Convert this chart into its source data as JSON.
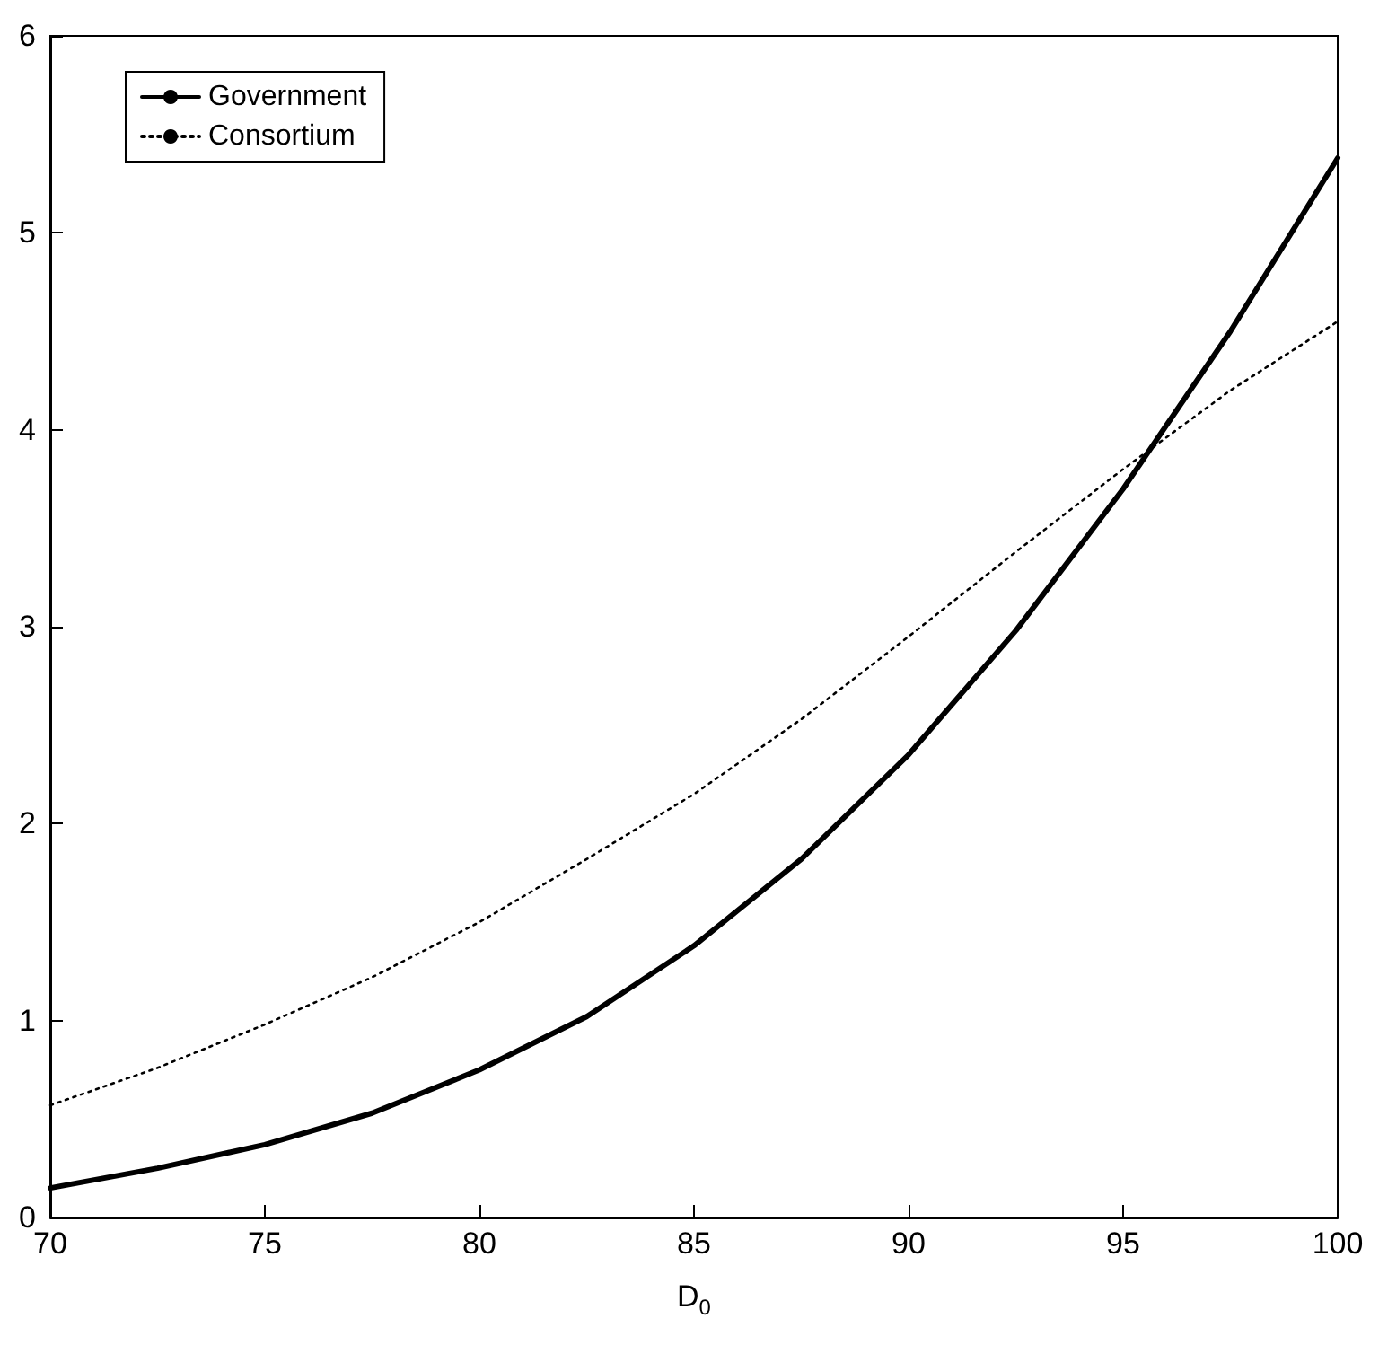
{
  "chart_data": {
    "type": "line",
    "xlabel": "D$_{0}$",
    "x": [
      70,
      72.5,
      75,
      77.5,
      80,
      82.5,
      85,
      87.5,
      90,
      92.5,
      95,
      97.5,
      100
    ],
    "series": [
      {
        "name": "Government",
        "color": "#000000",
        "line_style": "solid",
        "values": [
          0.15,
          0.25,
          0.37,
          0.53,
          0.75,
          1.02,
          1.38,
          1.82,
          2.35,
          2.98,
          3.7,
          4.5,
          5.38
        ]
      },
      {
        "name": "Consortium",
        "color": "#000000",
        "line_style": "dotted",
        "values": [
          0.57,
          0.76,
          0.98,
          1.22,
          1.5,
          1.82,
          2.15,
          2.53,
          2.95,
          3.38,
          3.8,
          4.2,
          4.55
        ]
      }
    ],
    "xlim": [
      70,
      100
    ],
    "xticks": [
      70,
      75,
      80,
      85,
      90,
      95,
      100
    ],
    "ylim": [
      0,
      6
    ],
    "yticks": [
      0,
      1,
      2,
      3,
      4,
      5,
      6
    ],
    "grid": false,
    "legend": "top left",
    "marker": "none"
  }
}
